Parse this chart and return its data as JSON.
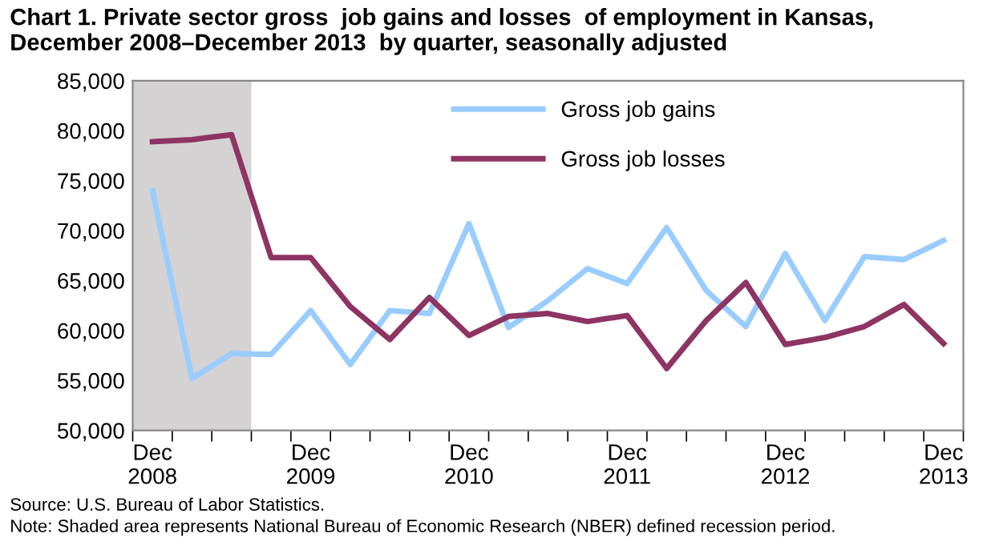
{
  "chart_data": {
    "type": "line",
    "title": "Chart 1. Private sector gross  job gains and losses  of employment in Kansas,\nDecember 2008–December 2013  by quarter, seasonally adjusted",
    "categories": [
      "Dec\n2008",
      null,
      null,
      null,
      "Dec\n2009",
      null,
      null,
      null,
      "Dec\n2010",
      null,
      null,
      null,
      "Dec\n2011",
      null,
      null,
      null,
      "Dec\n2012",
      null,
      null,
      null,
      "Dec\n2013"
    ],
    "series": [
      {
        "name": "Gross job gains",
        "color": "#99ccff",
        "values": [
          74000,
          55200,
          57700,
          57600,
          62000,
          56600,
          62000,
          61700,
          70700,
          60300,
          63000,
          66200,
          64700,
          70300,
          64000,
          60400,
          67700,
          61000,
          67400,
          67100,
          69000
        ]
      },
      {
        "name": "Gross job losses",
        "color": "#8e3462",
        "values": [
          78900,
          79100,
          79600,
          67300,
          67300,
          62400,
          59100,
          63300,
          59500,
          61400,
          61700,
          60900,
          61500,
          56200,
          61000,
          64800,
          58600,
          59300,
          60400,
          62600,
          58700
        ]
      }
    ],
    "ylim": [
      50000,
      85000
    ],
    "yticks": [
      {
        "value": 50000,
        "label": "50,000"
      },
      {
        "value": 55000,
        "label": "55,000"
      },
      {
        "value": 60000,
        "label": "60,000"
      },
      {
        "value": 65000,
        "label": "65,000"
      },
      {
        "value": 70000,
        "label": "70,000"
      },
      {
        "value": 75000,
        "label": "75,000"
      },
      {
        "value": 80000,
        "label": "80,000"
      },
      {
        "value": 85000,
        "label": "85,000"
      }
    ],
    "legend": "top",
    "grid": false,
    "marker": "none",
    "line_style": "solid",
    "annotations": [
      "Source: U.S. Bureau of Labor Statistics.",
      "Note: Shaded area represents National Bureau of Economic Research (NBER) defined recession period."
    ]
  }
}
